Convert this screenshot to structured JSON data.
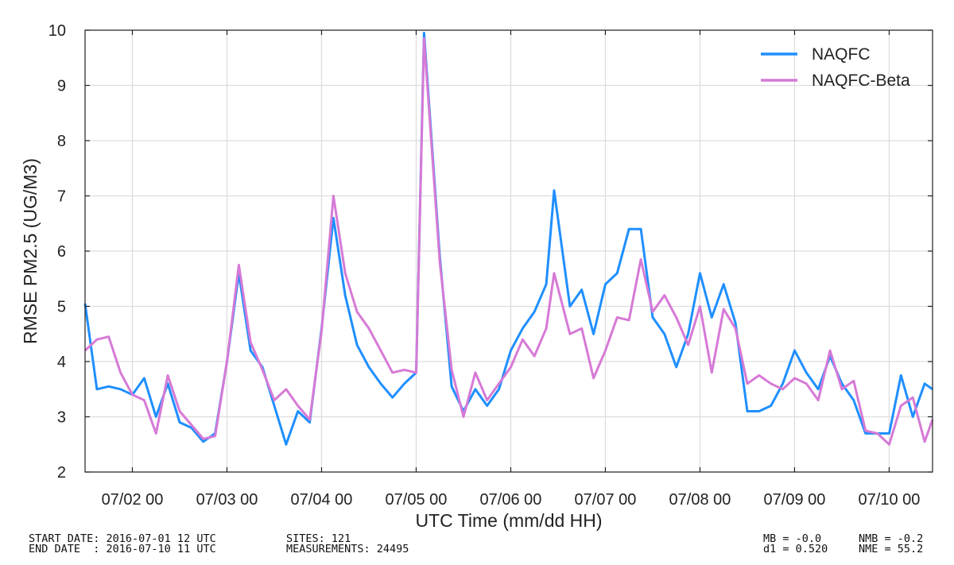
{
  "chart_data": {
    "type": "line",
    "title": "",
    "xlabel": "UTC Time (mm/dd HH)",
    "ylabel": "RMSE PM2.5 (UG/M3)",
    "x_unit": "hour",
    "x": [
      "2016-07-01 12:00",
      "2016-07-01 15:00",
      "2016-07-01 18:00",
      "2016-07-01 21:00",
      "2016-07-02 00:00",
      "2016-07-02 03:00",
      "2016-07-02 06:00",
      "2016-07-02 09:00",
      "2016-07-02 12:00",
      "2016-07-02 15:00",
      "2016-07-02 18:00",
      "2016-07-02 21:00",
      "2016-07-03 00:00",
      "2016-07-03 03:00",
      "2016-07-03 06:00",
      "2016-07-03 09:00",
      "2016-07-03 12:00",
      "2016-07-03 15:00",
      "2016-07-03 18:00",
      "2016-07-03 21:00",
      "2016-07-04 00:00",
      "2016-07-04 03:00",
      "2016-07-04 06:00",
      "2016-07-04 09:00",
      "2016-07-04 12:00",
      "2016-07-04 15:00",
      "2016-07-04 18:00",
      "2016-07-04 21:00",
      "2016-07-05 00:00",
      "2016-07-05 02:00",
      "2016-07-05 06:00",
      "2016-07-05 09:00",
      "2016-07-05 12:00",
      "2016-07-05 15:00",
      "2016-07-05 18:00",
      "2016-07-05 21:00",
      "2016-07-06 00:00",
      "2016-07-06 03:00",
      "2016-07-06 06:00",
      "2016-07-06 09:00",
      "2016-07-06 11:00",
      "2016-07-06 15:00",
      "2016-07-06 18:00",
      "2016-07-06 21:00",
      "2016-07-07 00:00",
      "2016-07-07 03:00",
      "2016-07-07 06:00",
      "2016-07-07 09:00",
      "2016-07-07 12:00",
      "2016-07-07 15:00",
      "2016-07-07 18:00",
      "2016-07-07 21:00",
      "2016-07-08 00:00",
      "2016-07-08 03:00",
      "2016-07-08 06:00",
      "2016-07-08 09:00",
      "2016-07-08 12:00",
      "2016-07-08 15:00",
      "2016-07-08 18:00",
      "2016-07-08 21:00",
      "2016-07-09 00:00",
      "2016-07-09 03:00",
      "2016-07-09 06:00",
      "2016-07-09 09:00",
      "2016-07-09 12:00",
      "2016-07-09 15:00",
      "2016-07-09 18:00",
      "2016-07-09 21:00",
      "2016-07-10 00:00",
      "2016-07-10 03:00",
      "2016-07-10 06:00",
      "2016-07-10 09:00",
      "2016-07-10 11:00"
    ],
    "series": [
      {
        "name": "NAQFC",
        "color": "#1f8fff",
        "values": [
          5.05,
          3.5,
          3.55,
          3.5,
          3.4,
          3.7,
          3.0,
          3.6,
          2.9,
          2.8,
          2.55,
          2.7,
          4.0,
          5.6,
          4.2,
          3.9,
          3.2,
          2.5,
          3.1,
          2.9,
          4.6,
          6.6,
          5.2,
          4.3,
          3.9,
          3.6,
          3.35,
          3.6,
          3.8,
          9.95,
          5.9,
          3.55,
          3.1,
          3.5,
          3.2,
          3.5,
          4.2,
          4.6,
          4.9,
          5.4,
          7.1,
          5.0,
          5.3,
          4.5,
          5.4,
          5.6,
          6.4,
          6.4,
          4.8,
          4.5,
          3.9,
          4.5,
          5.6,
          4.8,
          5.4,
          4.7,
          3.1,
          3.1,
          3.2,
          3.6,
          4.2,
          3.8,
          3.5,
          4.1,
          3.6,
          3.3,
          2.7,
          2.7,
          2.7,
          3.75,
          3.0,
          3.6,
          3.5
        ]
      },
      {
        "name": "NAQFC-Beta",
        "color": "#d67ad6",
        "values": [
          4.2,
          4.4,
          4.45,
          3.8,
          3.4,
          3.3,
          2.7,
          3.75,
          3.1,
          2.85,
          2.6,
          2.65,
          4.0,
          5.75,
          4.35,
          3.85,
          3.3,
          3.5,
          3.2,
          2.95,
          4.55,
          7.0,
          5.6,
          4.9,
          4.6,
          4.2,
          3.8,
          3.85,
          3.8,
          9.85,
          5.8,
          3.85,
          3.0,
          3.8,
          3.3,
          3.6,
          3.9,
          4.4,
          4.1,
          4.6,
          5.6,
          4.5,
          4.6,
          3.7,
          4.2,
          4.8,
          4.75,
          5.85,
          4.9,
          5.2,
          4.8,
          4.3,
          5.0,
          3.8,
          4.95,
          4.6,
          3.6,
          3.75,
          3.6,
          3.5,
          3.7,
          3.6,
          3.3,
          4.2,
          3.5,
          3.65,
          2.75,
          2.7,
          2.5,
          3.2,
          3.35,
          2.55,
          2.95
        ]
      }
    ],
    "xlim": [
      "2016-07-01 12:00",
      "2016-07-10 11:00"
    ],
    "ylim": [
      2,
      10
    ],
    "yticks": [
      2,
      3,
      4,
      5,
      6,
      7,
      8,
      9,
      10
    ],
    "xticks": [
      "2016-07-02 00:00",
      "2016-07-03 00:00",
      "2016-07-04 00:00",
      "2016-07-05 00:00",
      "2016-07-06 00:00",
      "2016-07-07 00:00",
      "2016-07-08 00:00",
      "2016-07-09 00:00",
      "2016-07-10 00:00"
    ],
    "xtick_labels": [
      "07/02 00",
      "07/03 00",
      "07/04 00",
      "07/05 00",
      "07/06 00",
      "07/07 00",
      "07/08 00",
      "07/09 00",
      "07/10 00"
    ],
    "grid": true,
    "legend_position": "top-right"
  },
  "footer": {
    "start_date": "START DATE: 2016-07-01 12 UTC",
    "end_date": "END DATE  : 2016-07-10 11 UTC",
    "sites": "SITES: 121",
    "measurements": "MEASUREMENTS: 24495",
    "mb": "MB = -0.0",
    "d1": "d1 = 0.520",
    "nmb": "NMB = -0.2",
    "nme": "NME = 55.2"
  }
}
